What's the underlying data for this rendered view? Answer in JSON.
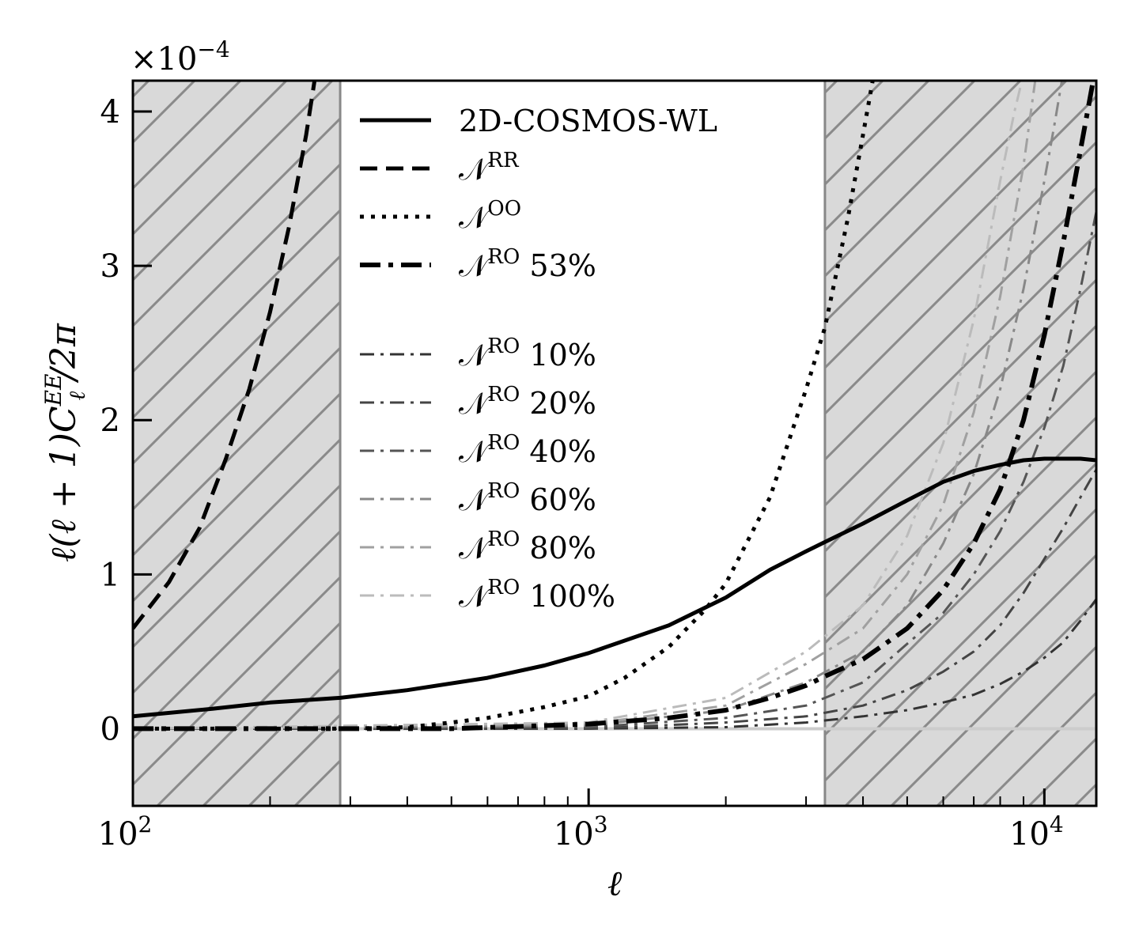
{
  "chart_data": {
    "type": "line",
    "title": "",
    "xlabel": "ℓ",
    "ylabel": "ℓ(ℓ + 1)C",
    "ylabel_sub": "ℓ",
    "ylabel_sup": "EE",
    "ylabel_tail": "/2π",
    "y_multiplier": {
      "base": "×10",
      "exponent": "−4"
    },
    "xscale": "log",
    "xlim": [
      100,
      13000
    ],
    "ylim": [
      -0.5,
      4.2
    ],
    "yticks": [
      {
        "value": 0,
        "label": "0"
      },
      {
        "value": 1,
        "label": "1"
      },
      {
        "value": 2,
        "label": "2"
      },
      {
        "value": 3,
        "label": "3"
      },
      {
        "value": 4,
        "label": "4"
      }
    ],
    "xticks": [
      {
        "value": 100,
        "base": "10",
        "exponent": "2"
      },
      {
        "value": 1000,
        "base": "10",
        "exponent": "3"
      },
      {
        "value": 10000,
        "base": "10",
        "exponent": "4"
      }
    ],
    "excluded_regions": [
      {
        "from": 100,
        "to": 285
      },
      {
        "from": 3300,
        "to": 13000
      }
    ],
    "series": [
      {
        "name": "2D-COSMOS-WL",
        "label_main": "2D-COSMOS-WL",
        "label_sup": "",
        "label_tail": "",
        "style": "solid",
        "color": "#000000",
        "width": 5,
        "x": [
          100,
          150,
          200,
          285,
          400,
          600,
          800,
          1000,
          1500,
          2000,
          2500,
          3000,
          3300,
          4000,
          5000,
          6000,
          7000,
          8000,
          9000,
          10000,
          11000,
          12000,
          13000
        ],
        "y": [
          0.08,
          0.13,
          0.17,
          0.2,
          0.25,
          0.33,
          0.41,
          0.49,
          0.67,
          0.85,
          1.03,
          1.15,
          1.21,
          1.33,
          1.48,
          1.6,
          1.67,
          1.71,
          1.74,
          1.75,
          1.75,
          1.75,
          1.74
        ]
      },
      {
        "name": "N^RR",
        "label_main": "𝒩",
        "label_sup": "RR",
        "label_tail": "",
        "style": "dashed",
        "color": "#000000",
        "width": 5,
        "x": [
          100,
          120,
          140,
          160,
          180,
          200,
          220,
          240,
          255,
          263
        ],
        "y": [
          0.65,
          0.95,
          1.3,
          1.75,
          2.2,
          2.7,
          3.25,
          3.85,
          4.35,
          4.6
        ]
      },
      {
        "name": "N^OO",
        "label_main": "𝒩",
        "label_sup": "OO",
        "label_tail": "",
        "style": "dotted",
        "color": "#000000",
        "width": 5,
        "x": [
          100,
          200,
          300,
          400,
          500,
          600,
          800,
          1000,
          1200,
          1500,
          1800,
          2000,
          2500,
          3000,
          3300,
          3700,
          4000,
          4200,
          4400
        ],
        "y": [
          0.0,
          0.0,
          0.0,
          0.01,
          0.04,
          0.07,
          0.14,
          0.21,
          0.33,
          0.53,
          0.77,
          0.94,
          1.5,
          2.2,
          2.6,
          3.3,
          3.85,
          4.2,
          4.5
        ]
      },
      {
        "name": "N^RO 53%",
        "label_main": "𝒩",
        "label_sup": "RO",
        "label_tail": " 53%",
        "style": "dashdot",
        "color": "#000000",
        "width": 6,
        "x": [
          100,
          500,
          1000,
          1500,
          2000,
          2500,
          3000,
          3300,
          4000,
          5000,
          6000,
          7000,
          8000,
          9000,
          10000,
          11000,
          12000,
          12800
        ],
        "y": [
          0.0,
          0.0,
          0.03,
          0.07,
          0.12,
          0.2,
          0.28,
          0.34,
          0.45,
          0.65,
          0.9,
          1.2,
          1.55,
          2.0,
          2.55,
          3.15,
          3.75,
          4.2
        ]
      },
      {
        "name": "N^RO 10%",
        "label_main": "𝒩",
        "label_sup": "RO",
        "label_tail": " 10%",
        "style": "dashdot-thin",
        "color": "#333333",
        "width": 3,
        "x": [
          100,
          1000,
          2000,
          3000,
          4000,
          5000,
          6000,
          7000,
          8000,
          9000,
          10000,
          11000,
          12000,
          13000
        ],
        "y": [
          0.0,
          0.0,
          0.01,
          0.04,
          0.08,
          0.12,
          0.17,
          0.22,
          0.29,
          0.37,
          0.46,
          0.56,
          0.7,
          0.84
        ]
      },
      {
        "name": "N^RO 20%",
        "label_main": "𝒩",
        "label_sup": "RO",
        "label_tail": " 20%",
        "style": "dashdot-thin",
        "color": "#444444",
        "width": 3,
        "x": [
          100,
          1000,
          2000,
          3000,
          4000,
          5000,
          6000,
          7000,
          8000,
          9000,
          10000,
          11000,
          12000,
          13000
        ],
        "y": [
          0.0,
          0.0,
          0.04,
          0.08,
          0.15,
          0.25,
          0.37,
          0.5,
          0.67,
          0.88,
          1.1,
          1.3,
          1.5,
          1.68
        ]
      },
      {
        "name": "N^RO 40%",
        "label_main": "𝒩",
        "label_sup": "RO",
        "label_tail": " 40%",
        "style": "dashdot-thin",
        "color": "#555555",
        "width": 3,
        "x": [
          100,
          1000,
          2000,
          3000,
          4000,
          5000,
          6000,
          7000,
          8000,
          9000,
          10000,
          11000,
          12000,
          13000
        ],
        "y": [
          0.0,
          0.01,
          0.07,
          0.15,
          0.3,
          0.55,
          0.75,
          1.0,
          1.28,
          1.6,
          1.95,
          2.35,
          2.85,
          3.35
        ]
      },
      {
        "name": "N^RO 60%",
        "label_main": "𝒩",
        "label_sup": "RO",
        "label_tail": " 60%",
        "style": "dashdot-thin",
        "color": "#888888",
        "width": 3,
        "x": [
          100,
          1000,
          2000,
          3000,
          4000,
          5000,
          6000,
          7000,
          8000,
          9000,
          10000,
          10500,
          11000
        ],
        "y": [
          0.0,
          0.02,
          0.12,
          0.3,
          0.5,
          0.8,
          1.2,
          1.65,
          2.2,
          2.85,
          3.55,
          3.9,
          4.25
        ]
      },
      {
        "name": "N^RO 80%",
        "label_main": "𝒩",
        "label_sup": "RO",
        "label_tail": " 80%",
        "style": "dashdot-thin",
        "color": "#a0a0a0",
        "width": 3,
        "x": [
          100,
          1000,
          2000,
          3000,
          4000,
          5000,
          6000,
          7000,
          8000,
          9000,
          9600
        ],
        "y": [
          0.0,
          0.03,
          0.15,
          0.42,
          0.65,
          1.0,
          1.45,
          2.05,
          2.8,
          3.65,
          4.25
        ]
      },
      {
        "name": "N^RO 100%",
        "label_main": "𝒩",
        "label_sup": "RO",
        "label_tail": " 100%",
        "style": "dashdot-thin",
        "color": "#bbbbbb",
        "width": 3,
        "x": [
          100,
          1000,
          2000,
          3000,
          4000,
          5000,
          6000,
          7000,
          8000,
          8600,
          9100
        ],
        "y": [
          0.0,
          0.04,
          0.2,
          0.5,
          0.8,
          1.25,
          1.85,
          2.65,
          3.55,
          4.0,
          4.3
        ]
      }
    ],
    "legend": {
      "location": "top-left-center",
      "gap_after_index": 3
    }
  }
}
